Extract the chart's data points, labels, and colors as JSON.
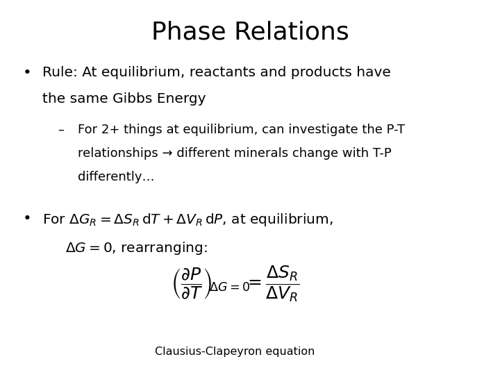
{
  "title": "Phase Relations",
  "background_color": "#ffffff",
  "text_color": "#000000",
  "title_fontsize": 26,
  "body_fontsize": 14.5,
  "sub_fontsize": 13,
  "caption_fontsize": 11.5,
  "equation_fontsize": 18,
  "bullet1_line1": "Rule: At equilibrium, reactants and products have",
  "bullet1_line2": "the same Gibbs Energy",
  "sub1_line1": "For 2+ things at equilibrium, can investigate the P-T",
  "sub1_line2": "relationships → different minerals change with T-P",
  "sub1_line3": "differently…",
  "caption": "Clausius-Clapeyron equation"
}
